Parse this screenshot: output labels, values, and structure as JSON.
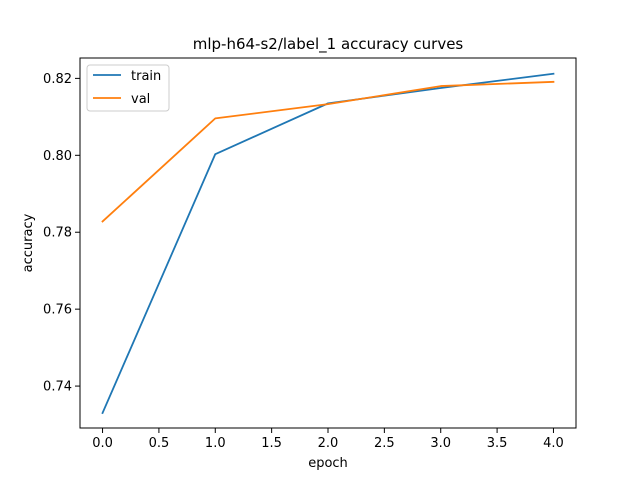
{
  "chart_data": {
    "type": "line",
    "title": "mlp-h64-s2/label_1 accuracy curves",
    "xlabel": "epoch",
    "ylabel": "accuracy",
    "x": [
      0,
      1,
      2,
      3,
      4
    ],
    "series": [
      {
        "name": "train",
        "values": [
          0.733,
          0.8003,
          0.8135,
          0.8175,
          0.8212
        ],
        "color": "#1f77b4"
      },
      {
        "name": "val",
        "values": [
          0.7828,
          0.8096,
          0.8133,
          0.818,
          0.8191
        ],
        "color": "#ff7f0e"
      }
    ],
    "xlim": [
      -0.2,
      4.2
    ],
    "ylim": [
      0.7291,
      0.8253
    ],
    "xticks": [
      0,
      0.5,
      1,
      1.5,
      2,
      2.5,
      3,
      3.5,
      4
    ],
    "xtick_labels": [
      "0.0",
      "0.5",
      "1.0",
      "1.5",
      "2.0",
      "2.5",
      "3.0",
      "3.5",
      "4.0"
    ],
    "yticks": [
      0.74,
      0.76,
      0.78,
      0.8,
      0.82
    ],
    "ytick_labels": [
      "0.74",
      "0.76",
      "0.78",
      "0.80",
      "0.82"
    ],
    "grid": false,
    "legend_position": "top-left"
  }
}
